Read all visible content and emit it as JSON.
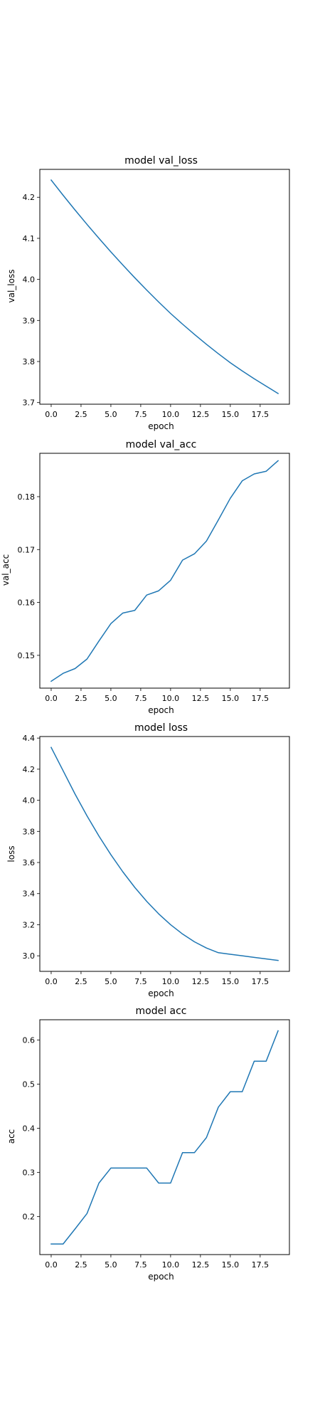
{
  "chart_data": [
    {
      "type": "line",
      "title": "model val_loss",
      "xlabel": "epoch",
      "ylabel": "val_loss",
      "xlim": [
        -0.95,
        19.95
      ],
      "ylim": [
        3.696,
        4.268
      ],
      "xticks": [
        0.0,
        2.5,
        5.0,
        7.5,
        10.0,
        12.5,
        15.0,
        17.5
      ],
      "xtick_labels": [
        "0.0",
        "2.5",
        "5.0",
        "7.5",
        "10.0",
        "12.5",
        "15.0",
        "17.5"
      ],
      "yticks": [
        3.7,
        3.8,
        3.9,
        4.0,
        4.1,
        4.2
      ],
      "ytick_labels": [
        "3.7",
        "3.8",
        "3.9",
        "4.0",
        "4.1",
        "4.2"
      ],
      "grid": false,
      "color": "#1f77b4",
      "x": [
        0,
        1,
        2,
        3,
        4,
        5,
        6,
        7,
        8,
        9,
        10,
        11,
        12,
        13,
        14,
        15,
        16,
        17,
        18,
        19
      ],
      "y": [
        4.242,
        4.205,
        4.169,
        4.134,
        4.1,
        4.067,
        4.035,
        4.004,
        3.974,
        3.945,
        3.917,
        3.891,
        3.866,
        3.842,
        3.819,
        3.797,
        3.777,
        3.758,
        3.74,
        3.722
      ]
    },
    {
      "type": "line",
      "title": "model val_acc",
      "xlabel": "epoch",
      "ylabel": "val_acc",
      "xlim": [
        -0.95,
        19.95
      ],
      "ylim": [
        0.1438,
        0.1882
      ],
      "xticks": [
        0.0,
        2.5,
        5.0,
        7.5,
        10.0,
        12.5,
        15.0,
        17.5
      ],
      "xtick_labels": [
        "0.0",
        "2.5",
        "5.0",
        "7.5",
        "10.0",
        "12.5",
        "15.0",
        "17.5"
      ],
      "yticks": [
        0.15,
        0.16,
        0.17,
        0.18
      ],
      "ytick_labels": [
        "0.15",
        "0.16",
        "0.17",
        "0.18"
      ],
      "grid": false,
      "color": "#1f77b4",
      "x": [
        0,
        1,
        2,
        3,
        4,
        5,
        6,
        7,
        8,
        9,
        10,
        11,
        12,
        13,
        14,
        15,
        16,
        17,
        18,
        19
      ],
      "y": [
        0.1451,
        0.1466,
        0.1475,
        0.1493,
        0.1527,
        0.156,
        0.158,
        0.1585,
        0.1614,
        0.1622,
        0.1642,
        0.168,
        0.1692,
        0.1716,
        0.1756,
        0.1797,
        0.183,
        0.1843,
        0.1848,
        0.1868
      ]
    },
    {
      "type": "line",
      "title": "model loss",
      "xlabel": "epoch",
      "ylabel": "loss",
      "xlim": [
        -0.95,
        19.95
      ],
      "ylim": [
        2.9,
        4.41
      ],
      "xticks": [
        0.0,
        2.5,
        5.0,
        7.5,
        10.0,
        12.5,
        15.0,
        17.5
      ],
      "xtick_labels": [
        "0.0",
        "2.5",
        "5.0",
        "7.5",
        "10.0",
        "12.5",
        "15.0",
        "17.5"
      ],
      "yticks": [
        3.0,
        3.2,
        3.4,
        3.6,
        3.8,
        4.0,
        4.2,
        4.4
      ],
      "ytick_labels": [
        "3.0",
        "3.2",
        "3.4",
        "3.6",
        "3.8",
        "4.0",
        "4.2",
        "4.4"
      ],
      "grid": false,
      "color": "#1f77b4",
      "x": [
        0,
        1,
        2,
        3,
        4,
        5,
        6,
        7,
        8,
        9,
        10,
        11,
        12,
        13,
        14,
        15,
        16,
        17,
        18,
        19
      ],
      "y": [
        4.34,
        4.19,
        4.04,
        3.9,
        3.77,
        3.65,
        3.54,
        3.44,
        3.35,
        3.27,
        3.2,
        3.14,
        3.09,
        3.05,
        3.02,
        3.01,
        3.0,
        2.99,
        2.98,
        2.97
      ]
    },
    {
      "type": "line",
      "title": "model acc",
      "xlabel": "epoch",
      "ylabel": "acc",
      "xlim": [
        -0.95,
        19.95
      ],
      "ylim": [
        0.114,
        0.646
      ],
      "xticks": [
        0.0,
        2.5,
        5.0,
        7.5,
        10.0,
        12.5,
        15.0,
        17.5
      ],
      "xtick_labels": [
        "0.0",
        "2.5",
        "5.0",
        "7.5",
        "10.0",
        "12.5",
        "15.0",
        "17.5"
      ],
      "yticks": [
        0.2,
        0.3,
        0.4,
        0.5,
        0.6
      ],
      "ytick_labels": [
        "0.2",
        "0.3",
        "0.4",
        "0.5",
        "0.6"
      ],
      "grid": false,
      "color": "#1f77b4",
      "x": [
        0,
        1,
        2,
        3,
        4,
        5,
        6,
        7,
        8,
        9,
        10,
        11,
        12,
        13,
        14,
        15,
        16,
        17,
        18,
        19
      ],
      "y": [
        0.138,
        0.138,
        0.172,
        0.207,
        0.276,
        0.31,
        0.31,
        0.31,
        0.31,
        0.276,
        0.276,
        0.345,
        0.345,
        0.379,
        0.448,
        0.483,
        0.483,
        0.552,
        0.552,
        0.621
      ]
    }
  ]
}
